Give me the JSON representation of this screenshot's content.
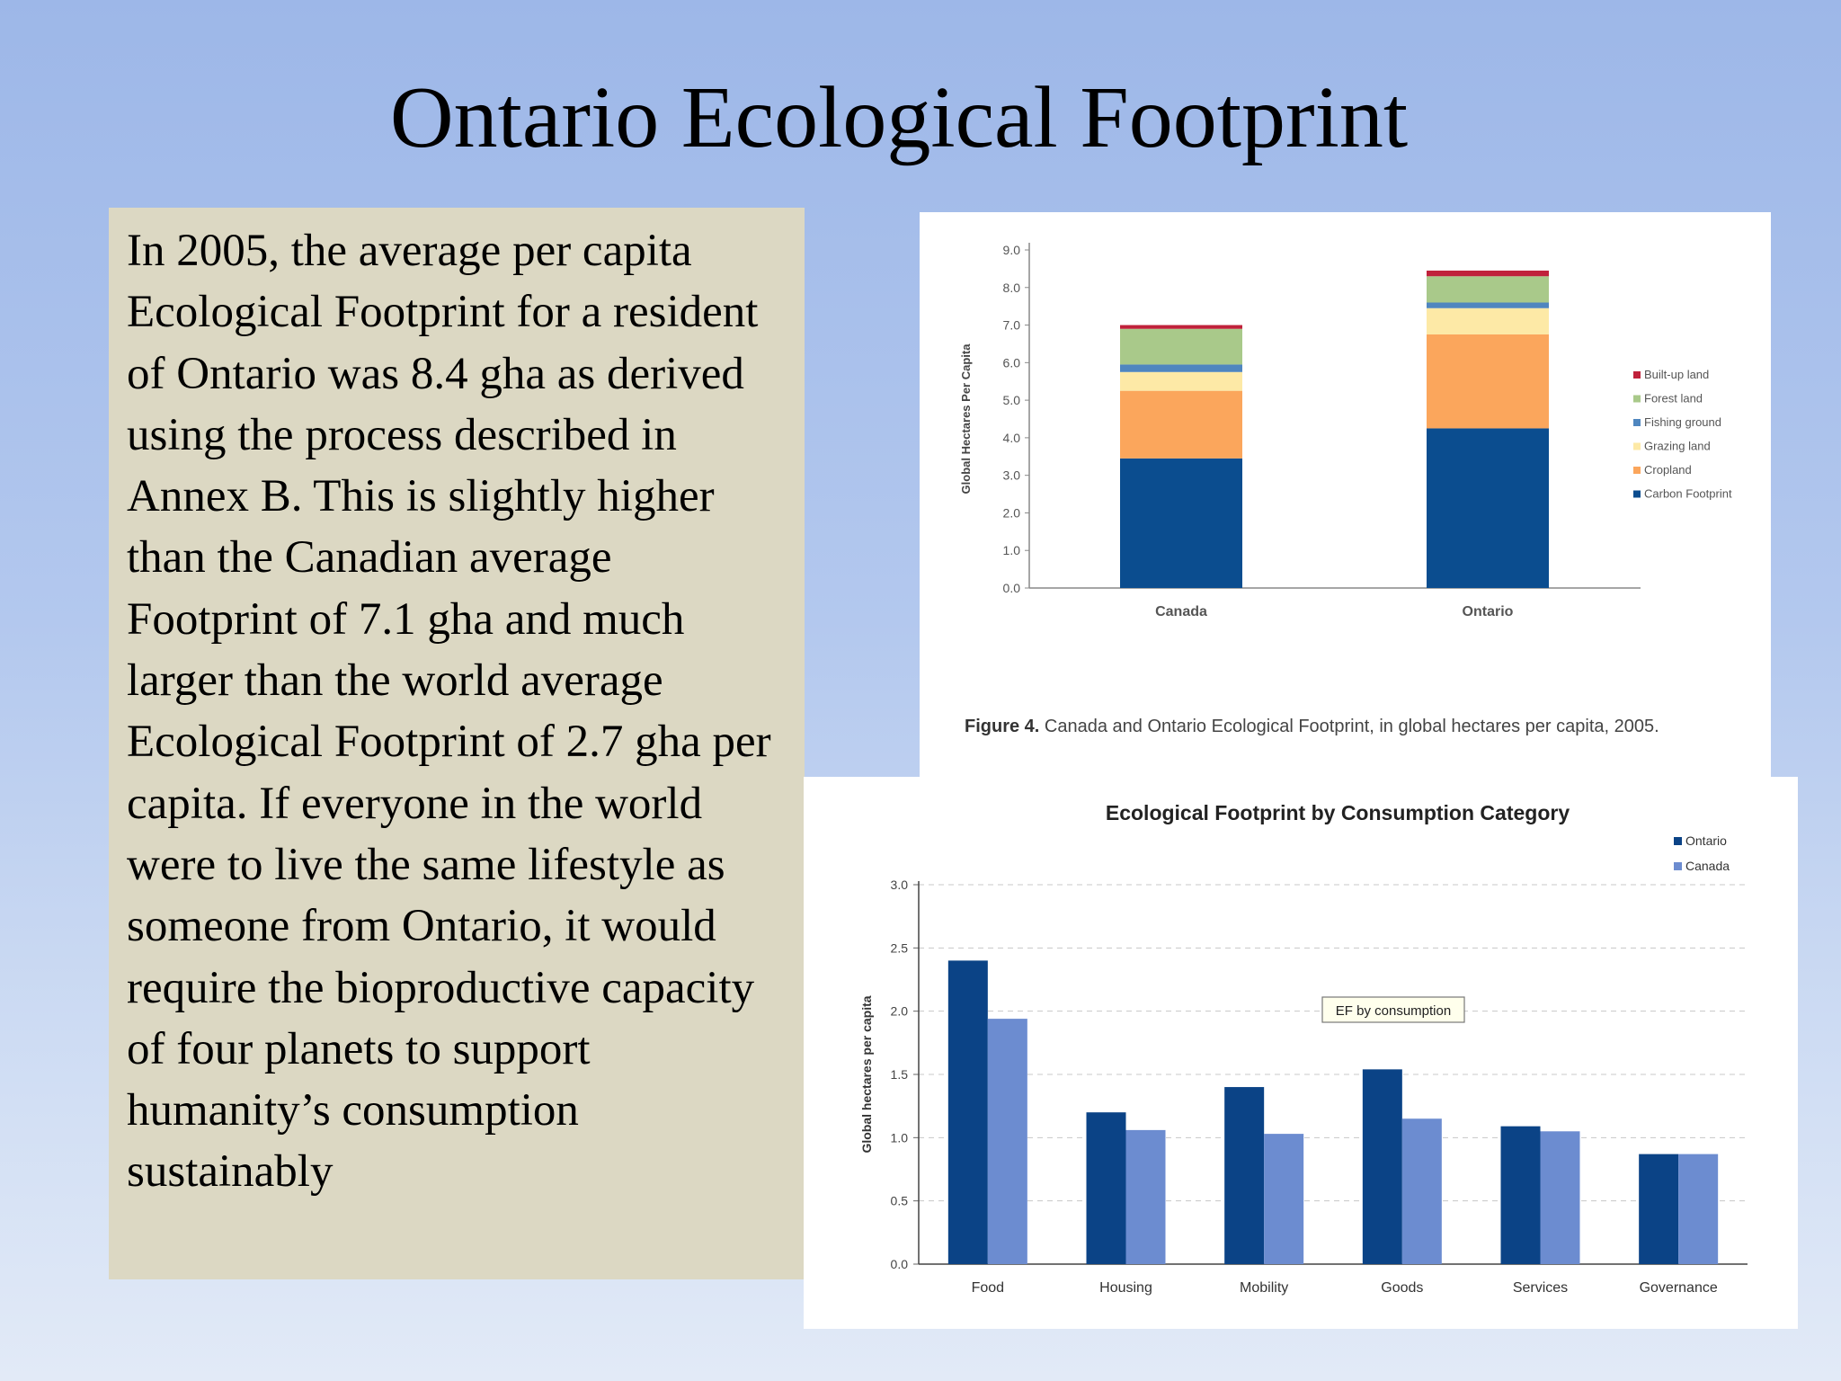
{
  "slide": {
    "title": "Ontario Ecological Footprint",
    "body": "In 2005, the average per capita Ecological Footprint for a resident of Ontario was 8.4 gha as derived using the process described in Annex B. This is slightly higher than the Canadian average Footprint of 7.1 gha and much larger than the world average Ecological Footprint of 2.7 gha per capita. If everyone in the world were to live the same lifestyle as someone from Ontario, it would require the bioproductive capacity of four planets to support humanity’s consumption sustainably"
  },
  "chart_data": [
    {
      "type": "bar",
      "stacked": true,
      "title": "",
      "caption_bold": "Figure 4.",
      "caption": "Canada and Ontario Ecological Footprint, in global hectares per capita, 2005.",
      "xlabel": "",
      "ylabel": "Global Hectares Per Capita",
      "ylim": [
        0,
        9
      ],
      "yticks": [
        "0.0",
        "1.0",
        "2.0",
        "3.0",
        "4.0",
        "5.0",
        "6.0",
        "7.0",
        "8.0",
        "9.0"
      ],
      "categories": [
        "Canada",
        "Ontario"
      ],
      "series": [
        {
          "name": "Carbon Footprint",
          "color": "#0b4d8f",
          "values": [
            3.45,
            4.25
          ]
        },
        {
          "name": "Cropland",
          "color": "#fba65c",
          "values": [
            1.8,
            2.5
          ]
        },
        {
          "name": "Grazing land",
          "color": "#fde9a6",
          "values": [
            0.5,
            0.7
          ]
        },
        {
          "name": "Fishing ground",
          "color": "#4f86bf",
          "values": [
            0.2,
            0.15
          ]
        },
        {
          "name": "Forest land",
          "color": "#a9c98a",
          "values": [
            0.95,
            0.7
          ]
        },
        {
          "name": "Built-up land",
          "color": "#c0213b",
          "values": [
            0.1,
            0.15
          ]
        }
      ],
      "legend_position": "right",
      "grid": false
    },
    {
      "type": "bar",
      "title": "Ecological Footprint by Consumption Category",
      "xlabel": "",
      "ylabel": "Global hectares per capita",
      "ylim": [
        0,
        3
      ],
      "yticks": [
        "0.0",
        "0.5",
        "1.0",
        "1.5",
        "2.0",
        "2.5",
        "3.0"
      ],
      "categories": [
        "Food",
        "Housing",
        "Mobility",
        "Goods",
        "Services",
        "Governance"
      ],
      "series": [
        {
          "name": "Ontario",
          "color": "#0b4386",
          "values": [
            2.4,
            1.2,
            1.4,
            1.54,
            1.09,
            0.87
          ]
        },
        {
          "name": "Canada",
          "color": "#6c8cd0",
          "values": [
            1.94,
            1.06,
            1.03,
            1.15,
            1.05,
            0.87
          ]
        }
      ],
      "annotation": "EF by consumption",
      "legend_position": "top-right",
      "grid": true
    }
  ]
}
